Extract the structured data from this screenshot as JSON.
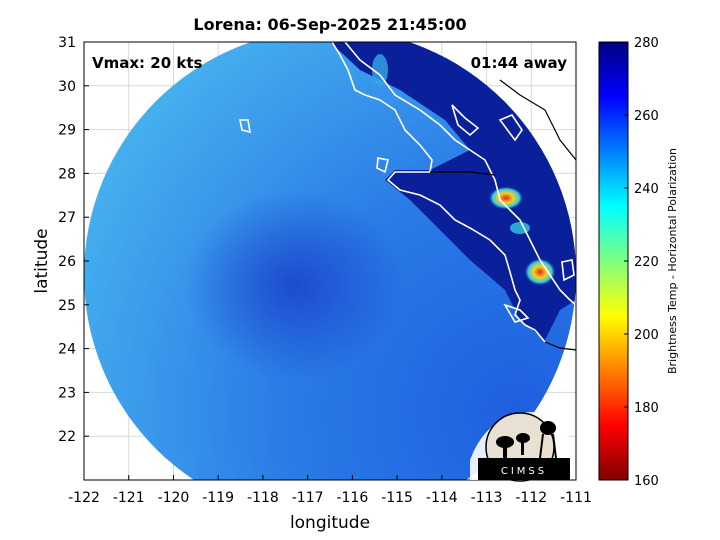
{
  "map": {
    "title": "Lorena: 06-Sep-2025 21:45:00",
    "xlabel": "longitude",
    "ylabel": "latitude",
    "vmax_text": "Vmax: 20 kts",
    "time_away_text": "01:44 away",
    "lon_range": [
      -122,
      -111
    ],
    "lat_range": [
      21,
      31
    ],
    "lon_ticks": [
      "-122",
      "-121",
      "-120",
      "-119",
      "-118",
      "-117",
      "-116",
      "-115",
      "-114",
      "-113",
      "-112",
      "-111"
    ],
    "lat_ticks": [
      "31",
      "30",
      "29",
      "28",
      "27",
      "26",
      "25",
      "24",
      "23",
      "22"
    ],
    "grid": true,
    "swath_center": {
      "lon": -116.9,
      "lat": 26.0
    },
    "colors": {
      "ocean_light": "#3fa7ef",
      "ocean_mid": "#2a7be6",
      "core_dark": "#1a45cc",
      "land_dark": "#0a1f9a",
      "coastline": "#ffffff",
      "hot_spot": "#e8221a"
    }
  },
  "colorbar": {
    "label": "Brightness Temp - Horizontal Polarization",
    "min": 160,
    "max": 280,
    "ticks": [
      "280",
      "260",
      "240",
      "220",
      "200",
      "180",
      "160"
    ],
    "colormap": "jet"
  },
  "logo": {
    "text": "CIMSS",
    "icon": "cimss-logo-icon"
  }
}
